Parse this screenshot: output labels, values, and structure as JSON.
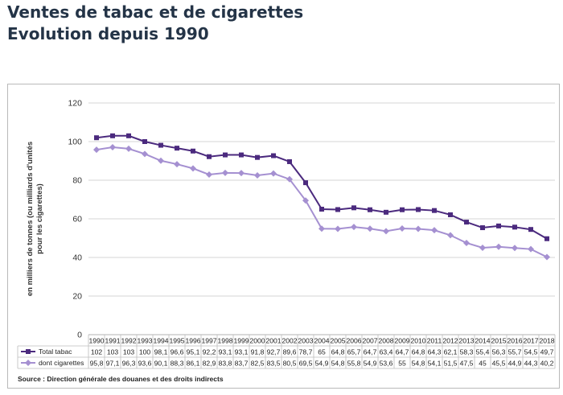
{
  "header": {
    "title_line1": "Ventes de tabac et de cigarettes",
    "title_line2": "Evolution depuis 1990"
  },
  "source": "Source : Direction générale des douanes et des droits indirects",
  "colors": {
    "total": "#4b2a7e",
    "cigarettes": "#a590d1",
    "grid": "#d4d4d4",
    "title": "#243447"
  },
  "chart_data": {
    "type": "line",
    "ylabel": [
      "en milliers de tonnes (ou milliards d'unités",
      "pour les cigarettes)"
    ],
    "ylim": [
      0,
      120
    ],
    "yticks": [
      0,
      20,
      40,
      60,
      80,
      100,
      120
    ],
    "grid": true,
    "legend": "bottom-table",
    "categories": [
      "1990",
      "1991",
      "1992",
      "1993",
      "1994",
      "1995",
      "1996",
      "1997",
      "1998",
      "1999",
      "2000",
      "2001",
      "2002",
      "2003",
      "2004",
      "2005",
      "2006",
      "2007",
      "2008",
      "2009",
      "2010",
      "2011",
      "2012",
      "2013",
      "2014",
      "2015",
      "2016",
      "2017",
      "2018"
    ],
    "series": [
      {
        "name": "Total tabac",
        "marker": "square",
        "color": "#4b2a7e",
        "values": [
          102,
          103,
          103,
          100,
          98.1,
          96.6,
          95.1,
          92.2,
          93.1,
          93.1,
          91.8,
          92.7,
          89.6,
          78.7,
          65,
          64.8,
          65.7,
          64.7,
          63.4,
          64.7,
          64.8,
          64.3,
          62.1,
          58.3,
          55.4,
          56.3,
          55.7,
          54.5,
          49.7
        ],
        "labels": [
          "102",
          "103",
          "103",
          "100",
          "98,1",
          "96,6",
          "95,1",
          "92,2",
          "93,1",
          "93,1",
          "91,8",
          "92,7",
          "89,6",
          "78,7",
          "65",
          "64,8",
          "65,7",
          "64,7",
          "63,4",
          "64,7",
          "64,8",
          "64,3",
          "62,1",
          "58,3",
          "55,4",
          "56,3",
          "55,7",
          "54,5",
          "49,7"
        ]
      },
      {
        "name": "dont cigarettes",
        "marker": "diamond",
        "color": "#a590d1",
        "values": [
          95.8,
          97.1,
          96.3,
          93.6,
          90.1,
          88.3,
          86.1,
          82.9,
          83.8,
          83.7,
          82.5,
          83.5,
          80.5,
          69.5,
          54.9,
          54.8,
          55.8,
          54.9,
          53.6,
          55,
          54.8,
          54.1,
          51.5,
          47.5,
          45,
          45.5,
          44.9,
          44.3,
          40.2
        ],
        "labels": [
          "95,8",
          "97,1",
          "96,3",
          "93,6",
          "90,1",
          "88,3",
          "86,1",
          "82,9",
          "83,8",
          "83,7",
          "82,5",
          "83,5",
          "80,5",
          "69,5",
          "54,9",
          "54,8",
          "55,8",
          "54,9",
          "53,6",
          "55",
          "54,8",
          "54,1",
          "51,5",
          "47,5",
          "45",
          "45,5",
          "44,9",
          "44,3",
          "40,2"
        ]
      }
    ]
  }
}
